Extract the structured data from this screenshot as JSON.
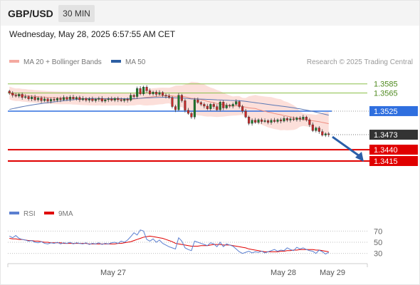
{
  "header": {
    "pair": "GBP/USD",
    "timeframe": "30 MIN",
    "timestamp": "Wednesday, May 28, 2025 6:57:55 AM CET"
  },
  "chart_data": [
    {
      "type": "candlestick",
      "legend": [
        {
          "label": "MA 20 + Bollinger Bands",
          "color": "#f4a9a0"
        },
        {
          "label": "MA 50",
          "color": "#2d5fa3"
        }
      ],
      "credit": "Research © 2025 Trading Central",
      "ylim": [
        1.3393,
        1.3605
      ],
      "x_labels": [
        "May 27",
        "May 28",
        "May 29"
      ],
      "levels": [
        {
          "value": 1.3585,
          "label": "1.3585",
          "color": "#8cc04a",
          "style": "thin"
        },
        {
          "value": 1.3565,
          "label": "1.3565",
          "color": "#8cc04a",
          "style": "thin"
        },
        {
          "value": 1.3525,
          "label": "1.3525",
          "color": "#2f6fdf",
          "style": "blue"
        },
        {
          "value": 1.3473,
          "label": "1.3473",
          "color": "#333333",
          "style": "current"
        },
        {
          "value": 1.344,
          "label": "1.3440",
          "color": "#e00000",
          "style": "red"
        },
        {
          "value": 1.3415,
          "label": "1.3415",
          "color": "#e00000",
          "style": "red"
        }
      ],
      "arrow": {
        "from": 1.3473,
        "to": 1.3415,
        "color": "#2a5ea8"
      },
      "candles_close": [
        1.3565,
        1.356,
        1.3558,
        1.3562,
        1.3555,
        1.3557,
        1.3552,
        1.3556,
        1.355,
        1.3554,
        1.3548,
        1.3552,
        1.3547,
        1.3551,
        1.3549,
        1.3553,
        1.355,
        1.3555,
        1.3551,
        1.3556,
        1.3552,
        1.3555,
        1.355,
        1.3553,
        1.3549,
        1.3552,
        1.3548,
        1.3551,
        1.3553,
        1.3547,
        1.355,
        1.3552,
        1.3549,
        1.3553,
        1.355,
        1.3548,
        1.3551,
        1.3549,
        1.356,
        1.3557,
        1.3575,
        1.3563,
        1.3578,
        1.357,
        1.3563,
        1.3567,
        1.3562,
        1.3566,
        1.356,
        1.3558,
        1.3555,
        1.3535,
        1.3528,
        1.356,
        1.3548,
        1.3527,
        1.352,
        1.3512,
        1.355,
        1.3544,
        1.354,
        1.3536,
        1.353,
        1.354,
        1.3535,
        1.3528,
        1.3545,
        1.3532,
        1.3538,
        1.3536,
        1.354,
        1.3546,
        1.3535,
        1.3525,
        1.3512,
        1.3498,
        1.3505,
        1.35,
        1.3506,
        1.3502,
        1.3504,
        1.35,
        1.3505,
        1.3502,
        1.3506,
        1.3503,
        1.3509,
        1.3505,
        1.3508,
        1.3506,
        1.351,
        1.3507,
        1.3512,
        1.3506,
        1.3495,
        1.3482,
        1.3488,
        1.348,
        1.3472,
        1.3475,
        1.3473
      ],
      "rsi_panel": {
        "legend": [
          {
            "label": "RSI",
            "color": "#5b7fd0"
          },
          {
            "label": "9MA",
            "color": "#e00000"
          }
        ],
        "ylim": [
          22,
          78
        ],
        "levels": [
          70,
          50,
          30
        ],
        "level_labels": [
          "70",
          "50",
          "30"
        ],
        "rsi": [
          61,
          58,
          62,
          57,
          55,
          54,
          52,
          53,
          50,
          49,
          51,
          48,
          47,
          49,
          48,
          50,
          47,
          49,
          48,
          50,
          47,
          49,
          48,
          47,
          49,
          46,
          48,
          47,
          49,
          46,
          48,
          47,
          49,
          50,
          48,
          52,
          50,
          54,
          60,
          67,
          63,
          72,
          70,
          55,
          52,
          56,
          50,
          54,
          48,
          45,
          42,
          40,
          38,
          58,
          52,
          40,
          37,
          35,
          52,
          50,
          48,
          46,
          44,
          49,
          47,
          42,
          50,
          42,
          47,
          45,
          43,
          38,
          33,
          30,
          32,
          34,
          31,
          33,
          32,
          34,
          31,
          33,
          35,
          37,
          34,
          36,
          35,
          40,
          37,
          35,
          41,
          38,
          40,
          37,
          35,
          34,
          30,
          36,
          33,
          29,
          32
        ],
        "ma9": [
          57,
          56,
          56,
          55,
          55,
          54,
          53,
          53,
          52,
          52,
          51,
          50,
          50,
          49,
          49,
          49,
          49,
          48,
          48,
          48,
          48,
          48,
          48,
          48,
          48,
          47,
          47,
          47,
          47,
          47,
          47,
          47,
          47,
          47,
          48,
          48,
          49,
          50,
          51,
          53,
          55,
          57,
          59,
          60,
          61,
          60,
          59,
          58,
          57,
          55,
          53,
          51,
          48,
          47,
          46,
          45,
          44,
          43,
          43,
          43,
          44,
          44,
          44,
          45,
          46,
          46,
          46,
          45,
          45,
          45,
          44,
          43,
          42,
          41,
          40,
          38,
          37,
          36,
          35,
          34,
          33,
          33,
          33,
          33,
          33,
          34,
          34,
          35,
          35,
          36,
          36,
          37,
          37,
          37,
          37,
          37,
          36,
          36,
          35,
          34,
          33
        ]
      }
    }
  ]
}
